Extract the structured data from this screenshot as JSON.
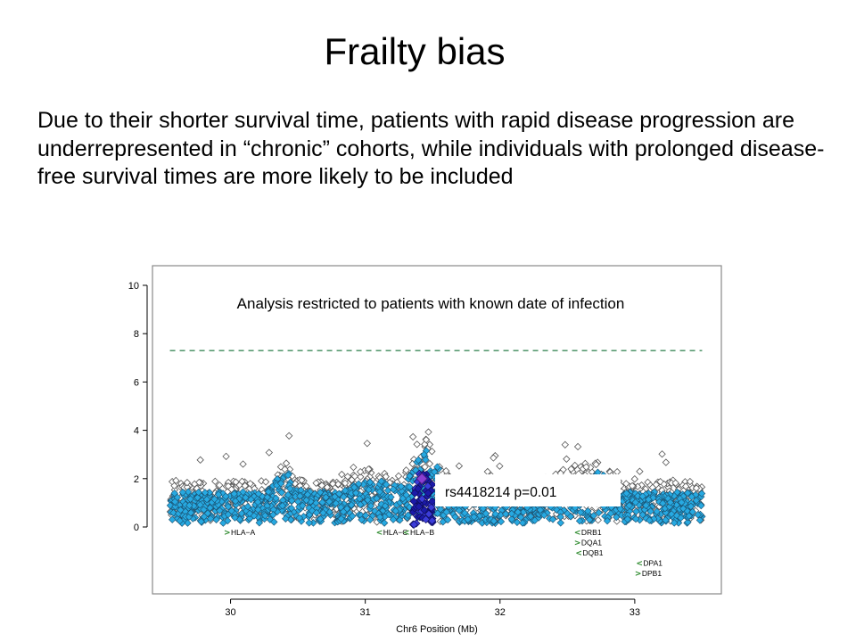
{
  "slide": {
    "title": "Frailty bias",
    "body": "Due to their shorter survival time, patients with rapid disease progression are underrepresented in “chronic” cohorts, while individuals with prolonged disease-free survival times are more likely to be included"
  },
  "colors": {
    "point_light": "#27a9e1",
    "point_highlight_dark": "#1c1aa8",
    "point_highlight_mid": "#3b3cd9",
    "lead_snp": "#8a3fd1",
    "threshold_line": "#3c8a5a",
    "gene_arrow": "#2e8b2e"
  },
  "chart_data": {
    "type": "scatter",
    "title": "",
    "annotation": "Analysis restricted to patients with known date of infection",
    "xlabel": "Chr6 Position (Mb)",
    "ylabel": "",
    "xlim": [
      29.5,
      33.55
    ],
    "ylim": [
      0,
      10
    ],
    "xticks": [
      "30",
      "31",
      "32",
      "33"
    ],
    "yticks": [
      "0",
      "2",
      "4",
      "6",
      "8",
      "10"
    ],
    "threshold_line": 7.3,
    "grid": false,
    "lead_snp": {
      "label": "rs4418214 p=0.01",
      "x": 31.42,
      "y": 2.0
    },
    "genes": [
      {
        "name": "HLA−A",
        "x": 29.95,
        "row": 0,
        "direction": "right"
      },
      {
        "name": "HLA−C",
        "x": 31.08,
        "row": 0,
        "direction": "left"
      },
      {
        "name": "HLA−B",
        "x": 31.28,
        "row": 0,
        "direction": "left"
      },
      {
        "name": "DRB1",
        "x": 32.55,
        "row": 0,
        "direction": "left"
      },
      {
        "name": "DQA1",
        "x": 32.55,
        "row": 1,
        "direction": "right"
      },
      {
        "name": "DQB1",
        "x": 32.56,
        "row": 2,
        "direction": "left"
      },
      {
        "name": "DPA1",
        "x": 33.01,
        "row": 3,
        "direction": "left"
      },
      {
        "name": "DPB1",
        "x": 33.0,
        "row": 4,
        "direction": "right"
      }
    ],
    "series": [
      {
        "shape": "diamond-filled",
        "x_start": 29.55,
        "x_end": 33.5,
        "y_range": [
          0.1,
          3.6
        ]
      },
      {
        "shape": "diamond-open",
        "x_start": 29.55,
        "x_end": 33.5,
        "y_range": [
          0.1,
          5.1
        ]
      },
      {
        "shape": "diamond-highlight",
        "x_start": 31.35,
        "x_end": 31.5,
        "y_range": [
          0.1,
          2.2
        ]
      }
    ]
  }
}
